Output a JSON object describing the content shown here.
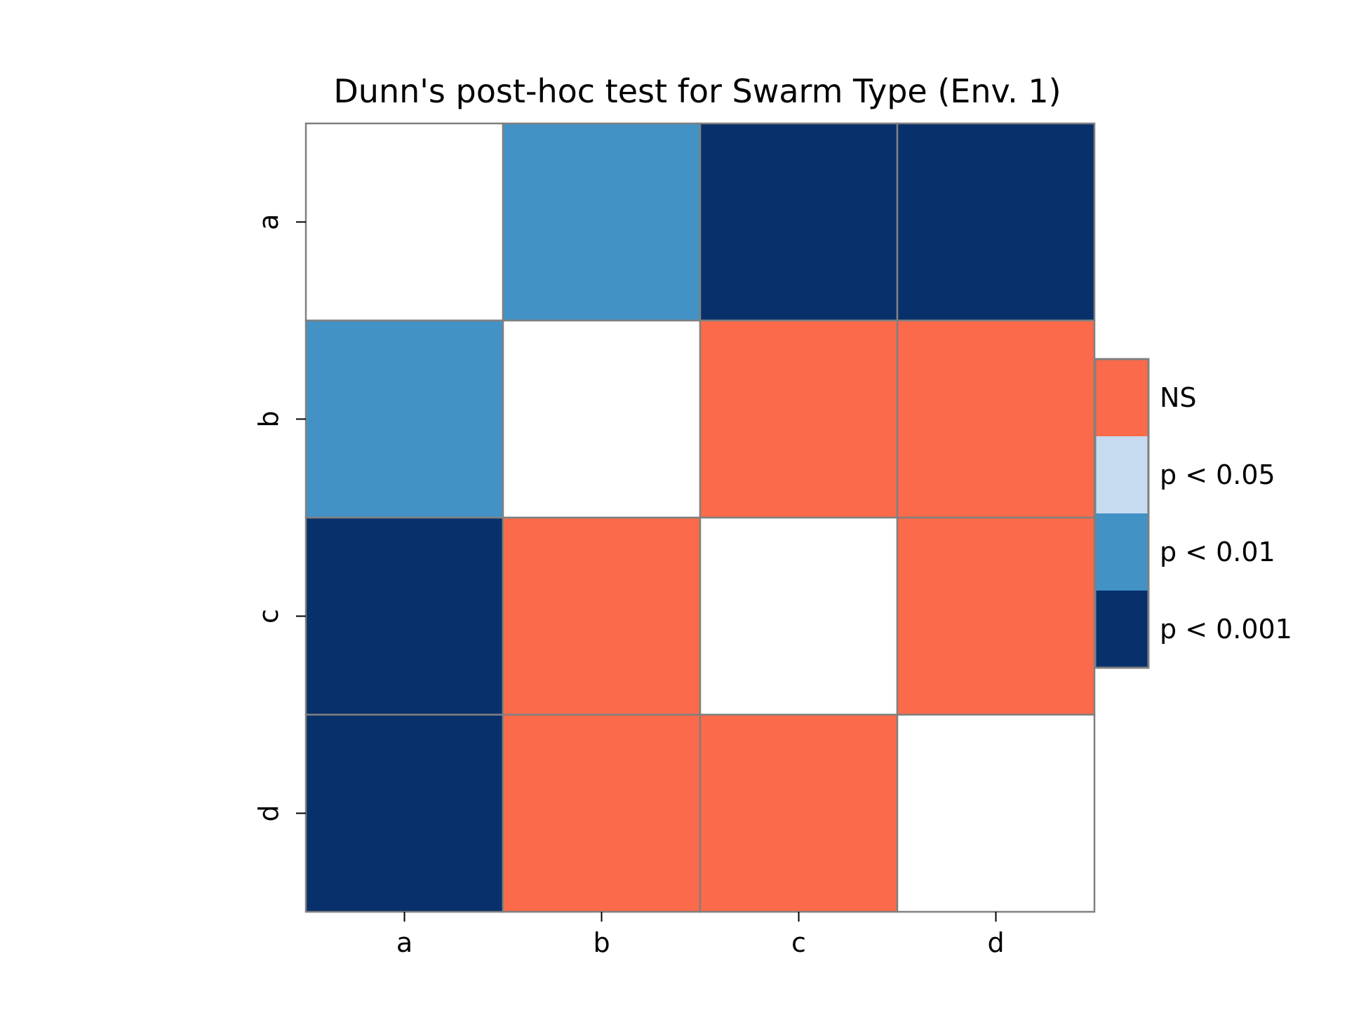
{
  "chart_data": {
    "type": "heatmap",
    "title": "Dunn's post-hoc test for Swarm Type (Env. 1)",
    "xlabel": "",
    "ylabel": "",
    "x_categories": [
      "a",
      "b",
      "c",
      "d"
    ],
    "y_categories": [
      "a",
      "b",
      "c",
      "d"
    ],
    "matrix": [
      [
        "diag",
        "p < 0.01",
        "p < 0.001",
        "p < 0.001"
      ],
      [
        "p < 0.01",
        "diag",
        "NS",
        "NS"
      ],
      [
        "p < 0.001",
        "NS",
        "diag",
        "NS"
      ],
      [
        "p < 0.001",
        "NS",
        "NS",
        "diag"
      ]
    ],
    "legend": {
      "placement": "right",
      "entries": [
        {
          "label": "NS",
          "color": "#fb6a4a"
        },
        {
          "label": "p < 0.05",
          "color": "#c6dbef"
        },
        {
          "label": "p < 0.01",
          "color": "#4292c6"
        },
        {
          "label": "p < 0.001",
          "color": "#08306b"
        }
      ]
    },
    "colors": {
      "diag": "#ffffff",
      "NS": "#fb6a4a",
      "p < 0.05": "#c6dbef",
      "p < 0.01": "#4292c6",
      "p < 0.001": "#08306b",
      "cell_border": "#808080"
    },
    "grid": false
  }
}
